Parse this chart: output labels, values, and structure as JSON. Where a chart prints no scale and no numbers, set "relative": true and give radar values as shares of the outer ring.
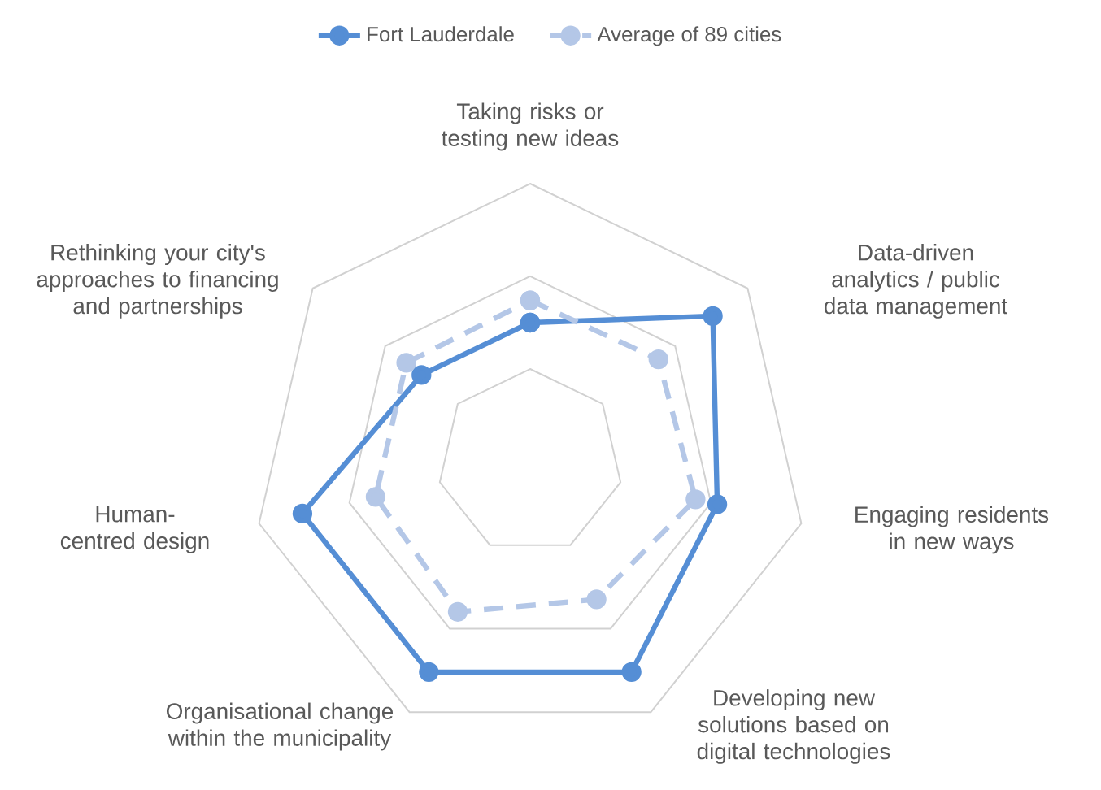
{
  "chart_data": {
    "type": "radar",
    "relative": true,
    "grid": true,
    "legend": "top",
    "marker": "circle",
    "categories": [
      "Taking risks or testing new ideas",
      "Data-driven analytics / public data management",
      "Engaging residents in new ways",
      "Developing new solutions based on digital technologies",
      "Organisational change within the municipality",
      "Human-centred design",
      "Rethinking your city's approaches to financing and partnerships"
    ],
    "series": [
      {
        "name": "Fort Lauderdale",
        "color": "#558ed5",
        "line_style": "solid",
        "values": [
          0.5,
          0.84,
          0.69,
          0.84,
          0.84,
          0.84,
          0.5
        ]
      },
      {
        "name": "Average of 89 cities",
        "color": "#b4c7e7",
        "line_style": "dashed",
        "values": [
          0.58,
          0.59,
          0.61,
          0.55,
          0.6,
          0.57,
          0.57
        ]
      }
    ]
  }
}
